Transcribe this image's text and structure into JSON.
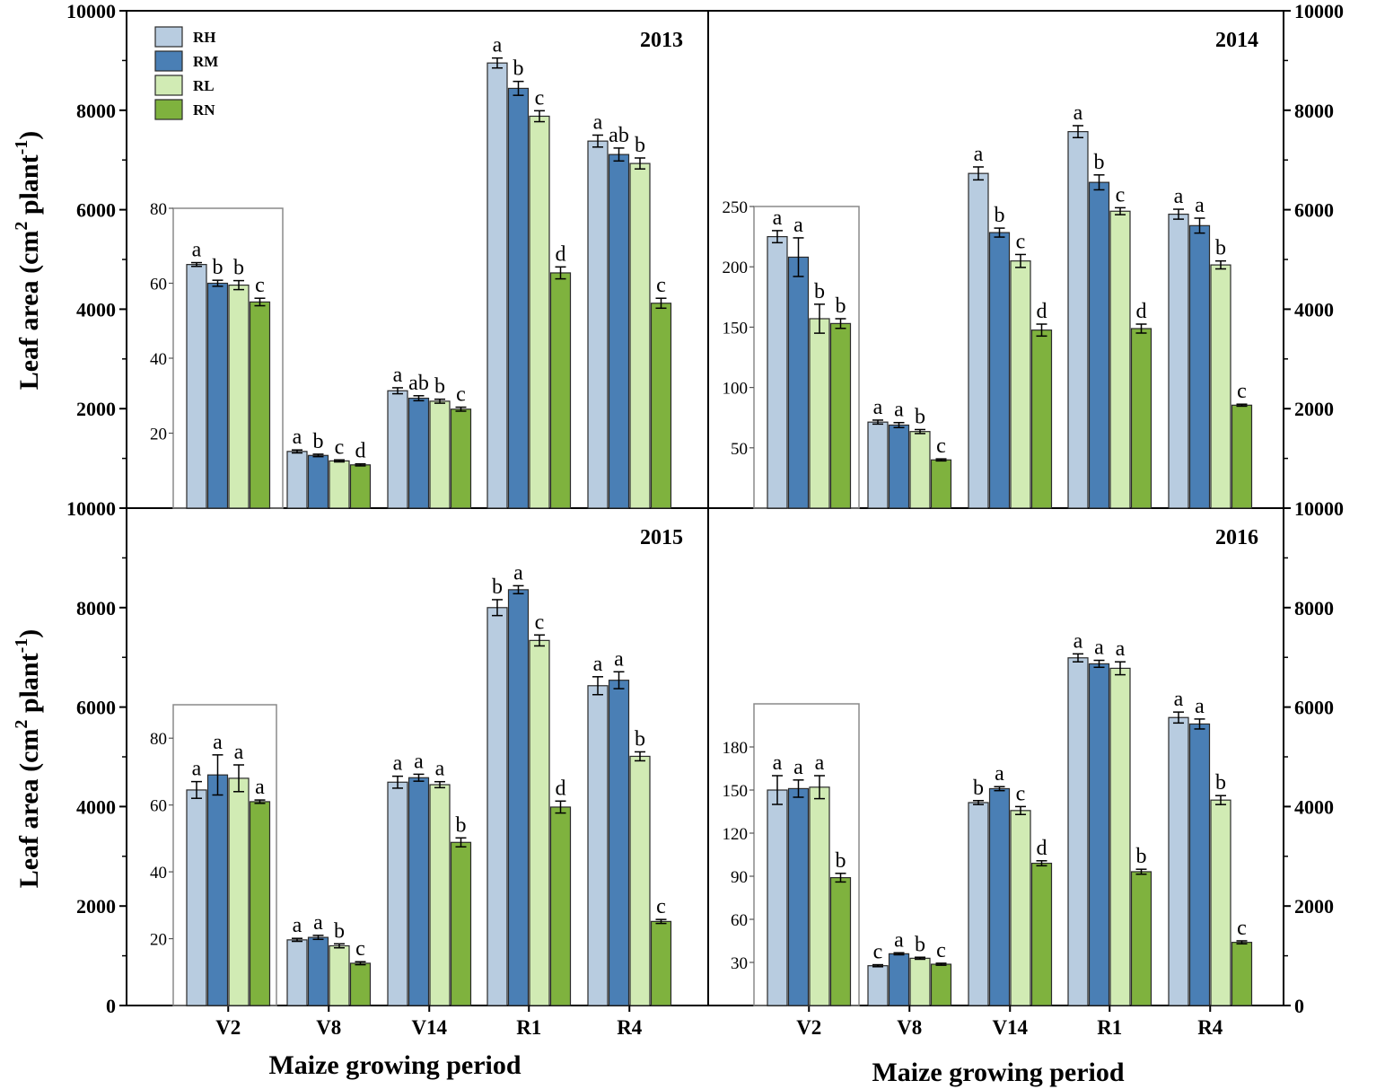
{
  "chart_data": {
    "type": "bar",
    "ylabel": "Leaf area (cm",
    "ylabel_sup2": "2",
    "ylabel_mid": " plant",
    "ylabel_sup1": "-1",
    "ylabel_end": ")",
    "xlabel": "Maize growing period",
    "categories": [
      "V2",
      "V8",
      "V14",
      "R1",
      "R4"
    ],
    "legend": [
      "RH",
      "RM",
      "RL",
      "RN"
    ],
    "colors": [
      "#b8cce0",
      "#4a7fb5",
      "#d1ebb4",
      "#7fb23e"
    ],
    "ylim": [
      0,
      10000
    ],
    "y_ticks": [
      "0",
      "2000",
      "4000",
      "6000",
      "8000",
      "10000"
    ],
    "shared_tick_label": "10000",
    "panels": [
      {
        "year": "2013",
        "series": [
          {
            "name": "RH",
            "values": [
              null,
              1140,
              2360,
              8950,
              7380
            ],
            "errors": [
              null,
              30,
              60,
              100,
              120
            ]
          },
          {
            "name": "RM",
            "values": [
              null,
              1060,
              2210,
              8440,
              7110
            ],
            "errors": [
              null,
              25,
              50,
              140,
              130
            ]
          },
          {
            "name": "RL",
            "values": [
              null,
              950,
              2150,
              7880,
              6930
            ],
            "errors": [
              null,
              20,
              40,
              110,
              110
            ]
          },
          {
            "name": "RN",
            "values": [
              null,
              870,
              1990,
              4730,
              4120
            ],
            "errors": [
              null,
              20,
              40,
              120,
              100
            ]
          }
        ],
        "letters": [
          [
            "a",
            "b",
            "b",
            "c"
          ],
          [
            "a",
            "b",
            "c",
            "d"
          ],
          [
            "a",
            "ab",
            "b",
            "c"
          ],
          [
            "a",
            "b",
            "c",
            "d"
          ],
          [
            "a",
            "ab",
            "b",
            "c"
          ]
        ],
        "inset": {
          "category": "V2",
          "ylim": [
            0,
            80
          ],
          "ticks": [
            "20",
            "40",
            "60",
            "80"
          ],
          "values": [
            65,
            60,
            59.5,
            55
          ],
          "errors": [
            0.5,
            0.8,
            1.2,
            1
          ]
        }
      },
      {
        "year": "2014",
        "series": [
          {
            "name": "RH",
            "values": [
              null,
              1730,
              6730,
              7570,
              5910
            ],
            "errors": [
              null,
              40,
              130,
              120,
              100
            ]
          },
          {
            "name": "RM",
            "values": [
              null,
              1670,
              5540,
              6550,
              5680
            ],
            "errors": [
              null,
              50,
              90,
              150,
              150
            ]
          },
          {
            "name": "RL",
            "values": [
              null,
              1540,
              4970,
              5970,
              4890
            ],
            "errors": [
              null,
              40,
              130,
              70,
              80
            ]
          },
          {
            "name": "RN",
            "values": [
              null,
              970,
              3580,
              3610,
              2070
            ],
            "errors": [
              null,
              20,
              120,
              90,
              20
            ]
          }
        ],
        "letters": [
          [
            "a",
            "a",
            "b",
            "b"
          ],
          [
            "a",
            "a",
            "b",
            "c"
          ],
          [
            "a",
            "b",
            "c",
            "d"
          ],
          [
            "a",
            "b",
            "c",
            "d"
          ],
          [
            "a",
            "a",
            "b",
            "c"
          ]
        ],
        "inset": {
          "category": "V2",
          "ylim": [
            0,
            250
          ],
          "ticks": [
            "50",
            "100",
            "150",
            "200",
            "250"
          ],
          "values": [
            225,
            208,
            157,
            153
          ],
          "errors": [
            5,
            16,
            12,
            4
          ]
        }
      },
      {
        "year": "2015",
        "series": [
          {
            "name": "RH",
            "values": [
              null,
              1320,
              4490,
              8000,
              6430
            ],
            "errors": [
              null,
              30,
              120,
              160,
              180
            ]
          },
          {
            "name": "RM",
            "values": [
              null,
              1370,
              4580,
              8360,
              6540
            ],
            "errors": [
              null,
              40,
              70,
              80,
              170
            ]
          },
          {
            "name": "RL",
            "values": [
              null,
              1200,
              4440,
              7340,
              5010
            ],
            "errors": [
              null,
              40,
              60,
              110,
              90
            ]
          },
          {
            "name": "RN",
            "values": [
              null,
              850,
              3280,
              3990,
              1690
            ],
            "errors": [
              null,
              30,
              90,
              120,
              40
            ]
          }
        ],
        "letters": [
          [
            "a",
            "a",
            "a",
            "a"
          ],
          [
            "a",
            "a",
            "b",
            "c"
          ],
          [
            "a",
            "a",
            "a",
            "b"
          ],
          [
            "b",
            "a",
            "c",
            "d"
          ],
          [
            "a",
            "a",
            "b",
            "c"
          ]
        ],
        "inset": {
          "category": "V2",
          "ylim": [
            0,
            90
          ],
          "ticks": [
            "20",
            "40",
            "60",
            "80"
          ],
          "values": [
            64.5,
            69,
            68,
            61
          ],
          "errors": [
            2.5,
            6,
            4,
            0.5
          ]
        }
      },
      {
        "year": "2016",
        "series": [
          {
            "name": "RH",
            "values": [
              null,
              800,
              4080,
              6990,
              5790
            ],
            "errors": [
              null,
              20,
              40,
              80,
              110
            ]
          },
          {
            "name": "RM",
            "values": [
              null,
              1040,
              4360,
              6870,
              5660
            ],
            "errors": [
              null,
              20,
              40,
              70,
              100
            ]
          },
          {
            "name": "RL",
            "values": [
              null,
              950,
              3920,
              6780,
              4130
            ],
            "errors": [
              null,
              20,
              80,
              130,
              90
            ]
          },
          {
            "name": "RN",
            "values": [
              null,
              830,
              2860,
              2690,
              1270
            ],
            "errors": [
              null,
              20,
              50,
              50,
              30
            ]
          }
        ],
        "letters": [
          [
            "a",
            "a",
            "a",
            "b"
          ],
          [
            "c",
            "a",
            "b",
            "c"
          ],
          [
            "b",
            "a",
            "c",
            "d"
          ],
          [
            "a",
            "a",
            "a",
            "b"
          ],
          [
            "a",
            "a",
            "b",
            "c"
          ]
        ],
        "inset": {
          "category": "V2",
          "ylim": [
            0,
            210
          ],
          "ticks": [
            "30",
            "60",
            "90",
            "120",
            "150",
            "180"
          ],
          "values": [
            150,
            151,
            152,
            89
          ],
          "errors": [
            10,
            6,
            8,
            3
          ]
        }
      }
    ]
  }
}
